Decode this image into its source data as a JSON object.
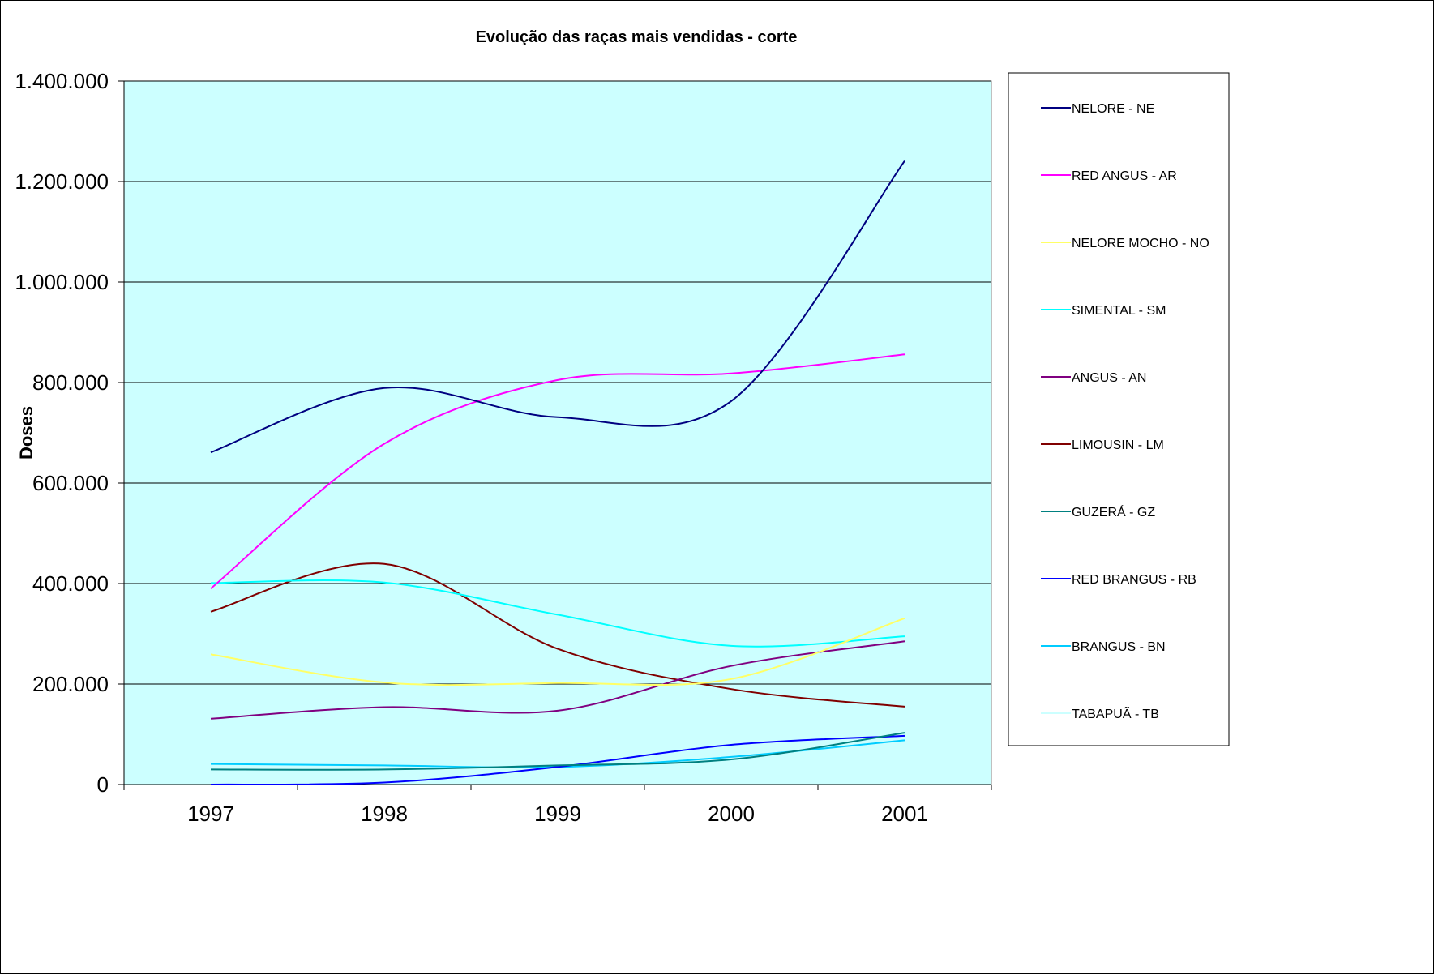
{
  "chart_data": {
    "type": "line",
    "title": "Evolução das raças mais vendidas - corte",
    "xlabel": "",
    "ylabel": "Doses",
    "categories": [
      "1997",
      "1998",
      "1999",
      "2000",
      "2001"
    ],
    "ylim": [
      0,
      1400000
    ],
    "y_ticks": [
      0,
      200000,
      400000,
      600000,
      800000,
      1000000,
      1200000,
      1400000
    ],
    "y_tick_labels": [
      "0",
      "200.000",
      "400.000",
      "600.000",
      "800.000",
      "1.000.000",
      "1.200.000",
      "1.400.000"
    ],
    "grid": true,
    "plot_background": "#ccffff",
    "legend_position": "right",
    "series": [
      {
        "name": "NELORE - NE",
        "color": "#000080",
        "values": [
          661000,
          789000,
          731000,
          763000,
          1241000
        ]
      },
      {
        "name": "RED ANGUS - AR",
        "color": "#ff00ff",
        "values": [
          390000,
          678000,
          805000,
          818000,
          856000
        ]
      },
      {
        "name": "NELORE MOCHO - NO",
        "color": "#ffff66",
        "values": [
          259000,
          203000,
          202000,
          210000,
          331000
        ]
      },
      {
        "name": "SIMENTAL - SM",
        "color": "#00ffff",
        "values": [
          401000,
          402000,
          338000,
          276000,
          295000
        ]
      },
      {
        "name": "ANGUS - AN",
        "color": "#800080",
        "values": [
          131000,
          154000,
          147000,
          236000,
          285000
        ]
      },
      {
        "name": "LIMOUSIN - LM",
        "color": "#800000",
        "values": [
          344000,
          439000,
          270000,
          190000,
          155000
        ]
      },
      {
        "name": "GUZERÁ - GZ",
        "color": "#008080",
        "values": [
          30000,
          30000,
          38000,
          50000,
          103000
        ]
      },
      {
        "name": "RED BRANGUS - RB",
        "color": "#0000ff",
        "values": [
          0,
          4000,
          35000,
          79000,
          97000
        ]
      },
      {
        "name": "BRANGUS - BN",
        "color": "#00ccff",
        "values": [
          41000,
          38000,
          35000,
          55000,
          88000
        ]
      },
      {
        "name": "TABAPUÃ - TB",
        "color": "#ccffff",
        "values": [
          28000,
          30000,
          33000,
          48000,
          92000
        ]
      }
    ]
  }
}
